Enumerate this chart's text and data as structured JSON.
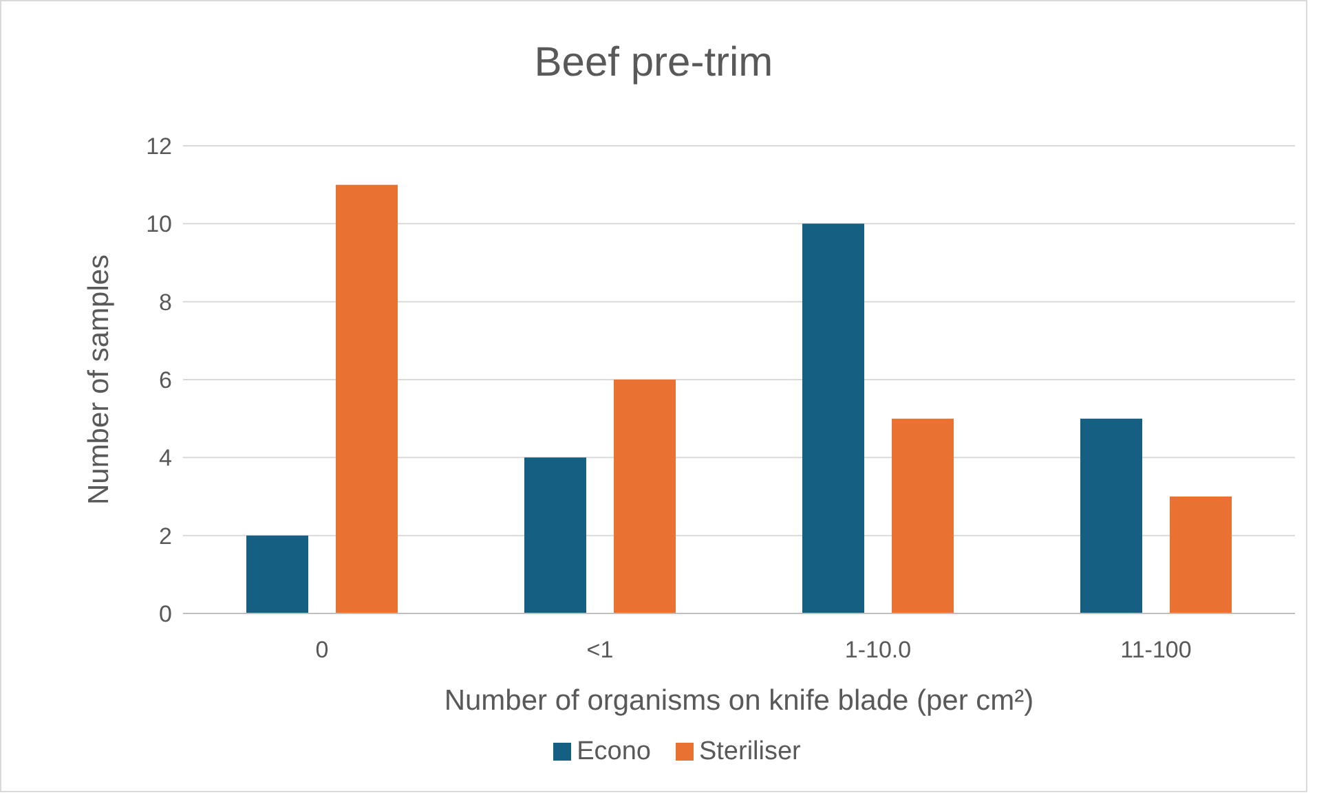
{
  "chart_data": {
    "type": "bar",
    "title": "Beef pre-trim",
    "xlabel": "Number of organisms on knife blade (per cm²)",
    "ylabel": "Number of samples",
    "categories": [
      "0",
      "<1",
      "1-10.0",
      "11-100"
    ],
    "series": [
      {
        "name": "Econo",
        "color": "#156082",
        "values": [
          2,
          4,
          10,
          5
        ]
      },
      {
        "name": "Steriliser",
        "color": "#e97132",
        "values": [
          11,
          6,
          5,
          3
        ]
      }
    ],
    "ylim": [
      0,
      12
    ],
    "yticks": [
      0,
      2,
      4,
      6,
      8,
      10,
      12
    ],
    "grid": "y",
    "legend": "bottom"
  }
}
